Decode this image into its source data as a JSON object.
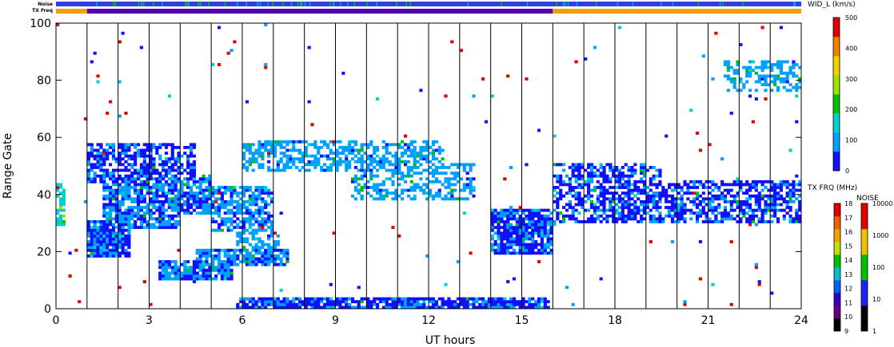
{
  "chart_data": {
    "type": "heatmap",
    "title": "",
    "xlabel": "UT hours",
    "ylabel": "Range Gate",
    "xlim": [
      0,
      24
    ],
    "ylim": [
      0,
      100
    ],
    "xticks": [
      0,
      3,
      6,
      9,
      12,
      15,
      18,
      21,
      24
    ],
    "yticks": [
      0,
      20,
      40,
      60,
      80,
      100
    ],
    "vertical_markers_ut": [
      1,
      2,
      3,
      4,
      5,
      6,
      7,
      8,
      9,
      10,
      11,
      12,
      13,
      14,
      15,
      16,
      17,
      18,
      19,
      20,
      21,
      22,
      23
    ],
    "top_strips": {
      "noise_label": "Noise",
      "txfreq_label": "TX Freq",
      "noise_color": "#3040e0",
      "txfreq_segments": [
        {
          "start": 0,
          "end": 1,
          "color": "#f0a000"
        },
        {
          "start": 1,
          "end": 16,
          "color": "#5000b0"
        },
        {
          "start": 16,
          "end": 24,
          "color": "#f0a000"
        }
      ]
    },
    "colorbars": {
      "width": {
        "label": "WID_L (km/s)",
        "min": 0,
        "max": 500,
        "ticks": [
          0,
          100,
          200,
          300,
          400,
          500
        ],
        "colors": [
          "#1010ff",
          "#00a0ff",
          "#00d0d0",
          "#00c000",
          "#a0e000",
          "#f0d000",
          "#f08000",
          "#e00000"
        ]
      },
      "txfreq": {
        "label": "TX FRQ (MHz)",
        "ticks": [
          9,
          10,
          11,
          12,
          13,
          14,
          15,
          16,
          17,
          18
        ],
        "colors": [
          "#000000",
          "#6a0080",
          "#3000c0",
          "#0060ff",
          "#00c0d0",
          "#00c000",
          "#c0e000",
          "#f0a000",
          "#f06000",
          "#e00000"
        ]
      },
      "noise": {
        "label": "NOISE",
        "ticks": [
          1,
          10,
          100,
          1000,
          10000
        ],
        "colors": [
          "#000000",
          "#2020ff",
          "#00c000",
          "#f0c000",
          "#e00000"
        ]
      }
    },
    "echo_regions": [
      {
        "ut": [
          0.0,
          0.3
        ],
        "gate": [
          29,
          43
        ],
        "v": 0.25,
        "density": 0.55
      },
      {
        "ut": [
          1.0,
          2.4
        ],
        "gate": [
          18,
          30
        ],
        "v": 0.05,
        "density": 0.9
      },
      {
        "ut": [
          1.0,
          4.5
        ],
        "gate": [
          44,
          57
        ],
        "v": 0.05,
        "density": 0.65
      },
      {
        "ut": [
          1.5,
          4.0
        ],
        "gate": [
          28,
          44
        ],
        "v": 0.08,
        "density": 0.8
      },
      {
        "ut": [
          2.5,
          5.0
        ],
        "gate": [
          33,
          46
        ],
        "v": 0.08,
        "density": 0.75
      },
      {
        "ut": [
          5.0,
          7.0
        ],
        "gate": [
          27,
          42
        ],
        "v": 0.1,
        "density": 0.7
      },
      {
        "ut": [
          5.8,
          7.2
        ],
        "gate": [
          21,
          26
        ],
        "v": 0.12,
        "density": 0.55
      },
      {
        "ut": [
          3.3,
          5.7
        ],
        "gate": [
          10,
          16
        ],
        "v": 0.08,
        "density": 0.85
      },
      {
        "ut": [
          4.5,
          7.5
        ],
        "gate": [
          15,
          20
        ],
        "v": 0.1,
        "density": 0.8
      },
      {
        "ut": [
          5.8,
          15.9
        ],
        "gate": [
          0,
          3
        ],
        "v": 0.05,
        "density": 0.85
      },
      {
        "ut": [
          6.0,
          12.5
        ],
        "gate": [
          48,
          58
        ],
        "v": 0.12,
        "density": 0.55
      },
      {
        "ut": [
          9.5,
          13.5
        ],
        "gate": [
          38,
          50
        ],
        "v": 0.12,
        "density": 0.45
      },
      {
        "ut": [
          14.0,
          16.0
        ],
        "gate": [
          19,
          34
        ],
        "v": 0.05,
        "density": 0.85
      },
      {
        "ut": [
          16.0,
          24.0
        ],
        "gate": [
          30,
          44
        ],
        "v": 0.05,
        "density": 0.6
      },
      {
        "ut": [
          16.0,
          19.5
        ],
        "gate": [
          40,
          50
        ],
        "v": 0.05,
        "density": 0.5
      },
      {
        "ut": [
          21.5,
          24.0
        ],
        "gate": [
          76,
          86
        ],
        "v": 0.12,
        "density": 0.45
      }
    ],
    "scatter_density": 0.006
  }
}
